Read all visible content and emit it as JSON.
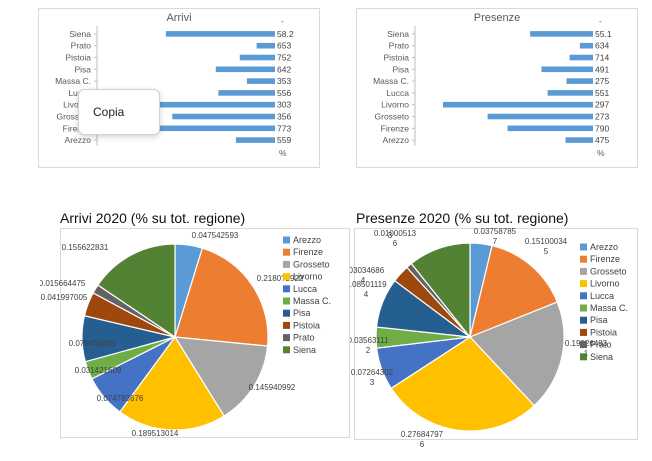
{
  "colors": {
    "bar": "#5b9bd5",
    "Arezzo": "#5b9bd5",
    "Firenze": "#ed7d31",
    "Grosseto": "#a5a5a5",
    "Livorno": "#ffc000",
    "Lucca": "#4472c4",
    "Massa C.": "#70ad47",
    "Pisa": "#255e91",
    "Pistoia": "#9e480e",
    "Prato": "#636363",
    "Siena": "#548235"
  },
  "context_menu": {
    "copy_label": "Copia"
  },
  "chart_data": [
    {
      "type": "bar",
      "orientation": "horizontal",
      "title": "Arrivi",
      "categories": [
        "Siena",
        "Prato",
        "Pistoia",
        "Pisa",
        "Massa C.",
        "Lucca",
        "Livorno",
        "Grosseto",
        "Firenze",
        "Arezzo"
      ],
      "values": [
        15.6,
        1.6,
        4.2,
        7.9,
        3.1,
        7.5,
        19.0,
        14.6,
        21.9,
        4.8
      ],
      "labels": [
        "58.2",
        "653",
        "752",
        "642",
        "353",
        "556",
        "303",
        "356",
        "773",
        "559"
      ],
      "suffix_top": "-",
      "suffix_bottom": "%"
    },
    {
      "type": "bar",
      "orientation": "horizontal",
      "title": "Presenze",
      "categories": [
        "Siena",
        "Prato",
        "Pistoia",
        "Pisa",
        "Massa C.",
        "Lucca",
        "Livorno",
        "Grosseto",
        "Firenze",
        "Arezzo"
      ],
      "values": [
        10.7,
        1.0,
        3.0,
        8.5,
        3.6,
        7.3,
        27.7,
        19.0,
        15.1,
        3.8
      ],
      "labels": [
        "55.1",
        "634",
        "714",
        "491",
        "275",
        "551",
        "297",
        "273",
        "790",
        "475"
      ],
      "suffix_top": "-",
      "suffix_bottom": "%"
    },
    {
      "type": "pie",
      "title": "Arrivi 2020 (% su tot. regione)",
      "legend_position": "right",
      "categories": [
        "Arezzo",
        "Firenze",
        "Grosseto",
        "Livorno",
        "Lucca",
        "Massa C.",
        "Pisa",
        "Pistoia",
        "Prato",
        "Siena"
      ],
      "values": [
        0.047542593,
        0.218022922,
        0.145940992,
        0.189513014,
        0.074783676,
        0.031421609,
        0.079450883,
        0.041997005,
        0.015664475,
        0.155622831
      ],
      "labels": [
        "0.047542593",
        "0.2180?2922",
        "0.145940992",
        "0.189513014",
        "0.074783676",
        "0.031421609",
        "0.079450883",
        "0.041997005",
        "0.015664475",
        "0.155622831"
      ]
    },
    {
      "type": "pie",
      "title": "Presenze 2020 (% su tot. regione)",
      "legend_position": "right",
      "categories": [
        "Arezzo",
        "Firenze",
        "Grosseto",
        "Livorno",
        "Lucca",
        "Massa C.",
        "Pisa",
        "Pistoia",
        "Prato",
        "Siena"
      ],
      "values": [
        0.037587857,
        0.151000345,
        0.190264831,
        0.276847976,
        0.072643023,
        0.035631112,
        0.085011194,
        0.030346864,
        0.010005136,
        0.106871663
      ],
      "labels": [
        [
          "0.03758785",
          "7"
        ],
        [
          "0.15100034",
          "5"
        ],
        [
          "0.19026483",
          "1"
        ],
        [
          "0.27684797",
          "6"
        ],
        [
          "0.07264302",
          "3"
        ],
        [
          "0.03563111",
          "2"
        ],
        [
          "0.08501119",
          "4"
        ],
        [
          "0.03034686",
          "4"
        ],
        [
          "0.01000513",
          "6"
        ],
        [
          "0.10687166",
          "3"
        ]
      ]
    }
  ]
}
